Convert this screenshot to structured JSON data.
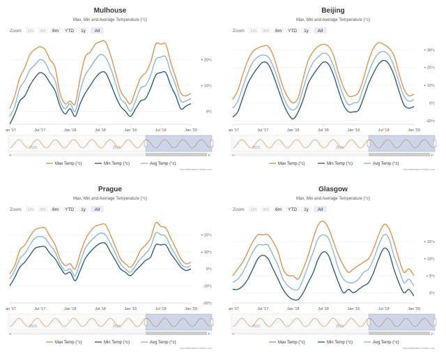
{
  "colors": {
    "max": "#e2924d",
    "min": "#2f5d7e",
    "avg": "#8fb6d4"
  },
  "chart_data": [
    {
      "type": "line",
      "title": "Mulhouse",
      "subtitle": "Max, Min and Average Temperature (°c)",
      "zoom": {
        "label": "Zoom",
        "buttons": [
          "1m",
          "3m",
          "6m",
          "YTD",
          "1y",
          "All"
        ]
      },
      "xlabels": [
        "Jan '17",
        "Jul '17",
        "Jan '18",
        "Jul '18",
        "Jan '19",
        "Jul '19",
        "Jan '20"
      ],
      "ylim": [
        -5,
        28
      ],
      "yticks": [
        "+ 20°c",
        "+ 10°c",
        "0°c"
      ],
      "ytick_values": [
        20,
        10,
        0
      ],
      "navigator_years": [
        "2010",
        "2015"
      ],
      "legend": [
        "Max Temp (°c)",
        "Min Temp (°c)",
        "Avg Temp (°c)"
      ],
      "credit": "WorldWeatherOnline.com",
      "series": [
        {
          "name": "Max Temp (°c)",
          "values": [
            1,
            6,
            13,
            17,
            22,
            24,
            25,
            24,
            20,
            17,
            7,
            3,
            4,
            3,
            13,
            21,
            23,
            26,
            27,
            27,
            22,
            15,
            8,
            5,
            3,
            8,
            13,
            15,
            19,
            26,
            26,
            26,
            19,
            13,
            7,
            6,
            7
          ]
        },
        {
          "name": "Min Temp (°c)",
          "values": [
            -5,
            -1,
            4,
            6,
            10,
            13,
            15,
            14,
            11,
            8,
            2,
            -1,
            1,
            -2,
            3,
            7,
            10,
            13,
            15,
            15,
            11,
            6,
            2,
            0,
            -2,
            1,
            4,
            5,
            9,
            14,
            15,
            15,
            10,
            6,
            1,
            2,
            3
          ]
        },
        {
          "name": "Avg Temp (°c)",
          "values": [
            -2,
            2,
            9,
            12,
            16,
            18,
            20,
            19,
            15,
            12,
            4,
            1,
            3,
            0,
            8,
            14,
            17,
            20,
            22,
            21,
            17,
            11,
            5,
            3,
            0,
            4,
            9,
            10,
            14,
            20,
            21,
            21,
            15,
            10,
            4,
            4,
            5
          ]
        }
      ]
    },
    {
      "type": "line",
      "title": "Beijing",
      "subtitle": "Max, Min and Average Temperature (°c)",
      "zoom": {
        "label": "Zoom",
        "buttons": [
          "1m",
          "3m",
          "6m",
          "YTD",
          "1y",
          "All"
        ]
      },
      "xlabels": [
        "Jan '17",
        "Jul '17",
        "Jan '18",
        "Jul '18",
        "Jan '19",
        "Jul '19",
        "Jan '20"
      ],
      "ylim": [
        -12,
        36
      ],
      "yticks": [
        "+ 30°c",
        "+ 20°c",
        "+ 10°c",
        "0°c",
        "-10°c"
      ],
      "ytick_values": [
        30,
        20,
        10,
        0,
        -10
      ],
      "navigator_years": [
        "2010",
        "2015"
      ],
      "legend": [
        "Max Temp (°c)",
        "Min Temp (°c)",
        "Avg Temp (°c)"
      ],
      "credit": "WorldWeatherOnline.com",
      "series": [
        {
          "name": "Max Temp (°c)",
          "values": [
            2,
            7,
            16,
            24,
            29,
            31,
            32,
            32,
            27,
            18,
            9,
            3,
            0,
            3,
            14,
            24,
            29,
            32,
            33,
            32,
            27,
            17,
            9,
            4,
            4,
            6,
            14,
            24,
            31,
            34,
            33,
            31,
            27,
            17,
            8,
            4,
            5
          ]
        },
        {
          "name": "Min Temp (°c)",
          "values": [
            -8,
            -5,
            3,
            11,
            16,
            20,
            23,
            22,
            16,
            8,
            0,
            -6,
            -9,
            -5,
            2,
            11,
            16,
            20,
            23,
            22,
            16,
            7,
            -1,
            -5,
            -5,
            -4,
            3,
            11,
            17,
            22,
            24,
            22,
            16,
            7,
            -1,
            -3,
            -2
          ]
        },
        {
          "name": "Avg Temp (°c)",
          "values": [
            -3,
            1,
            9,
            17,
            23,
            26,
            27,
            26,
            21,
            13,
            4,
            -2,
            -4,
            -1,
            8,
            17,
            23,
            26,
            28,
            27,
            21,
            12,
            4,
            -1,
            0,
            1,
            9,
            17,
            24,
            28,
            29,
            27,
            21,
            12,
            4,
            1,
            2
          ]
        }
      ]
    },
    {
      "type": "line",
      "title": "Prague",
      "subtitle": "Max, Min and Average Temperature (°c)",
      "zoom": {
        "label": "Zoom",
        "buttons": [
          "1m",
          "3m",
          "6m",
          "YTD",
          "1y",
          "All"
        ]
      },
      "xlabels": [
        "Jan '17",
        "Jul '17",
        "Jan '18",
        "Jul '18",
        "Jan '19",
        "Jul '19",
        "Jan '20"
      ],
      "ylim": [
        -20,
        30
      ],
      "yticks": [
        "+ 20°c",
        "+ 10°c",
        "0°c",
        "-10°c",
        "-20°c"
      ],
      "ytick_values": [
        20,
        10,
        0,
        -10,
        -20
      ],
      "navigator_years": [
        "2010",
        "2015"
      ],
      "legend": [
        "Max Temp (°c)",
        "Min Temp (°c)",
        "Avg Temp (°c)"
      ],
      "credit": "WorldWeatherOnline.com",
      "series": [
        {
          "name": "Max Temp (°c)",
          "values": [
            -3,
            2,
            11,
            14,
            19,
            23,
            24,
            24,
            19,
            14,
            6,
            2,
            3,
            0,
            9,
            17,
            22,
            25,
            26,
            26,
            20,
            13,
            6,
            3,
            1,
            5,
            11,
            14,
            18,
            27,
            25,
            24,
            18,
            12,
            6,
            3,
            4
          ]
        },
        {
          "name": "Min Temp (°c)",
          "values": [
            -10,
            -5,
            1,
            4,
            8,
            12,
            13,
            13,
            9,
            6,
            1,
            -3,
            -2,
            -7,
            -1,
            6,
            10,
            13,
            15,
            15,
            10,
            5,
            0,
            -2,
            -4,
            -1,
            2,
            5,
            7,
            14,
            14,
            14,
            9,
            5,
            1,
            -1,
            0
          ]
        },
        {
          "name": "Avg Temp (°c)",
          "values": [
            -6,
            -1,
            6,
            9,
            14,
            18,
            19,
            18,
            14,
            10,
            3,
            -1,
            0,
            -4,
            4,
            12,
            16,
            19,
            21,
            20,
            15,
            9,
            3,
            0,
            -2,
            2,
            6,
            9,
            13,
            21,
            20,
            19,
            13,
            8,
            3,
            1,
            2
          ]
        }
      ]
    },
    {
      "type": "line",
      "title": "Glasgow",
      "subtitle": "Max, Min and Average Temperature (°c)",
      "zoom": {
        "label": "Zoom",
        "buttons": [
          "1m",
          "3m",
          "6m",
          "YTD",
          "1y",
          "All"
        ]
      },
      "xlabels": [
        "Jan '17",
        "Jul '17",
        "Jan '18",
        "Jul '18",
        "Jan '19",
        "Jul '19",
        "Jan '20"
      ],
      "ylim": [
        -3,
        22
      ],
      "yticks": [
        "+ 15°c",
        "+ 10°c",
        "+ 5°c",
        "0°c"
      ],
      "ytick_values": [
        15,
        10,
        5,
        0
      ],
      "navigator_years": [
        "2010",
        "2015"
      ],
      "legend": [
        "Max Temp (°c)",
        "Min Temp (°c)",
        "Avg Temp (°c)"
      ],
      "credit": "WorldWeatherOnline.com",
      "series": [
        {
          "name": "Max Temp (°c)",
          "values": [
            5,
            7,
            9,
            12,
            15,
            17,
            17,
            17,
            15,
            12,
            7,
            5,
            5,
            4,
            7,
            11,
            16,
            20,
            21,
            19,
            15,
            11,
            8,
            6,
            7,
            8,
            9,
            10,
            13,
            17,
            20,
            19,
            15,
            10,
            6,
            7,
            5
          ]
        },
        {
          "name": "Min Temp (°c)",
          "values": [
            1,
            1,
            2,
            4,
            7,
            10,
            11,
            10,
            7,
            4,
            1,
            -1,
            -2,
            -2,
            0,
            3,
            6,
            10,
            12,
            11,
            7,
            3,
            0,
            1,
            0,
            1,
            2,
            3,
            6,
            10,
            13,
            12,
            7,
            3,
            0,
            1,
            -1
          ]
        },
        {
          "name": "Avg Temp (°c)",
          "values": [
            3,
            4,
            6,
            9,
            12,
            14,
            14,
            14,
            11,
            8,
            4,
            2,
            1,
            1,
            4,
            8,
            12,
            16,
            17,
            16,
            12,
            7,
            4,
            3,
            3,
            4,
            6,
            7,
            10,
            14,
            17,
            16,
            11,
            7,
            3,
            4,
            2
          ]
        }
      ]
    }
  ]
}
